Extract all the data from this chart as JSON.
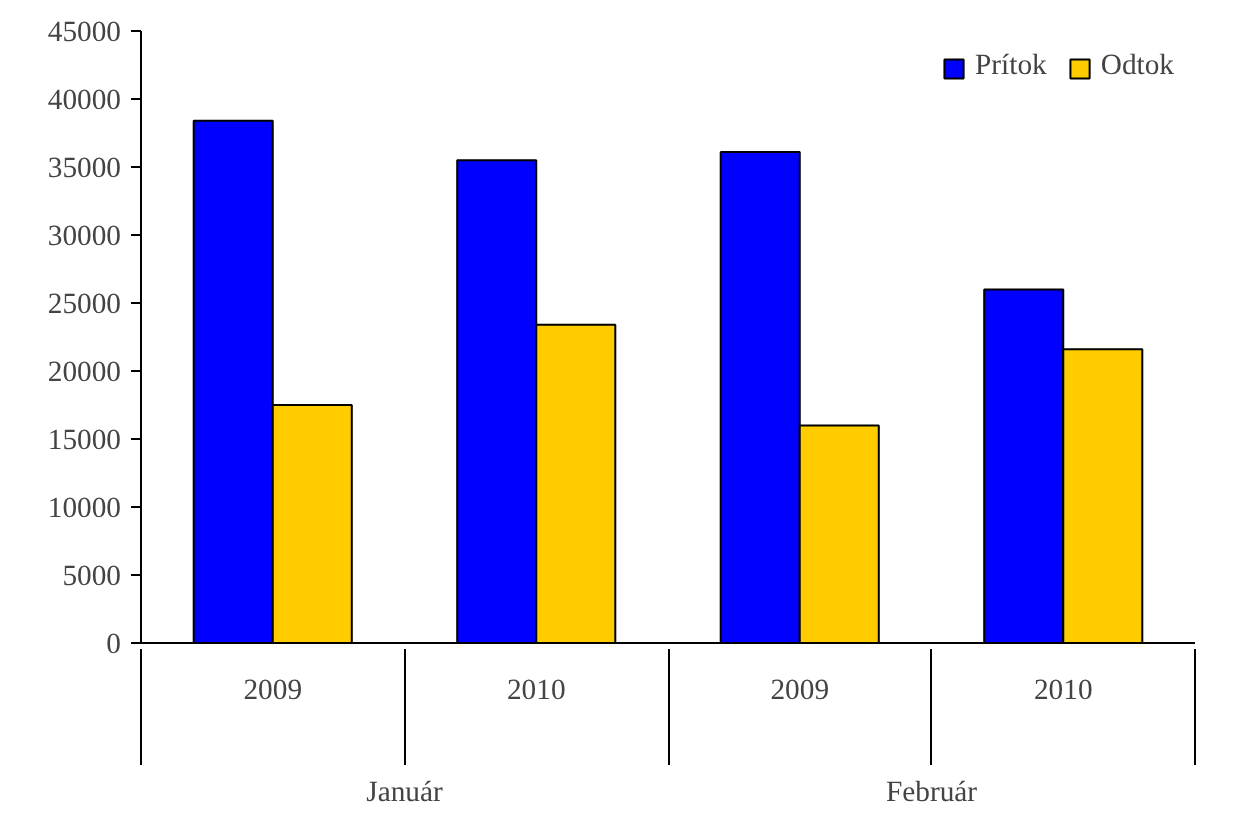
{
  "chart_data": {
    "type": "bar",
    "categories": [
      "2009",
      "2010",
      "2009",
      "2010"
    ],
    "series": [
      {
        "name": "Prítok",
        "color": "#0000ff",
        "values": [
          38400,
          35500,
          36100,
          26000
        ]
      },
      {
        "name": "Odtok",
        "color": "#ffcc00",
        "values": [
          17500,
          23400,
          16000,
          21600
        ]
      }
    ],
    "annotations": [
      "Január",
      "Február"
    ],
    "ylim": [
      0,
      45000
    ],
    "yticks": [
      0,
      5000,
      10000,
      15000,
      20000,
      25000,
      30000,
      35000,
      40000,
      45000
    ],
    "legend": "top right",
    "grid": false
  }
}
